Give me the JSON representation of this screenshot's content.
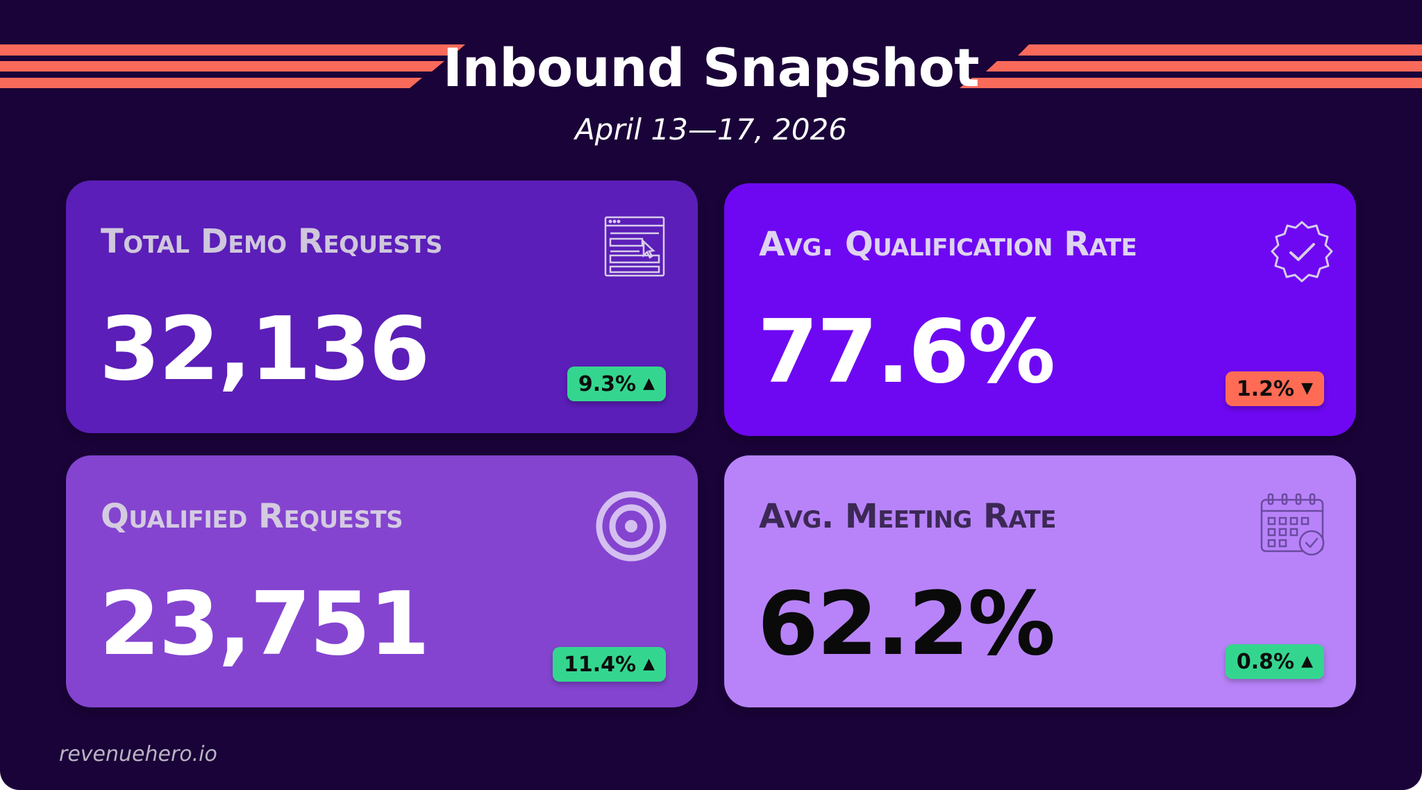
{
  "header": {
    "title": "Inbound Snapshot",
    "subtitle": "April 13—17, 2026"
  },
  "colors": {
    "background": "#1a0338",
    "stripe": "#fa6a5a",
    "badge_up": "#34d68f",
    "badge_down": "#ff6b55"
  },
  "cards": [
    {
      "label": "Total Demo Requests",
      "value": "32,136",
      "change": "9.3%",
      "direction": "up",
      "icon": "web-form-icon",
      "color": "#5b1eb8"
    },
    {
      "label": "Avg. Qualification Rate",
      "value": "77.6%",
      "change": "1.2%",
      "direction": "down",
      "icon": "verified-badge-icon",
      "color": "#6e08f2"
    },
    {
      "label": "Qualified Requests",
      "value": "23,751",
      "change": "11.4%",
      "direction": "up",
      "icon": "target-icon",
      "color": "#8444d0"
    },
    {
      "label": "Avg. Meeting Rate",
      "value": "62.2%",
      "change": "0.8%",
      "direction": "up",
      "icon": "calendar-check-icon",
      "color": "#b883f9"
    }
  ],
  "footer": {
    "brand": "revenuehero.io"
  }
}
